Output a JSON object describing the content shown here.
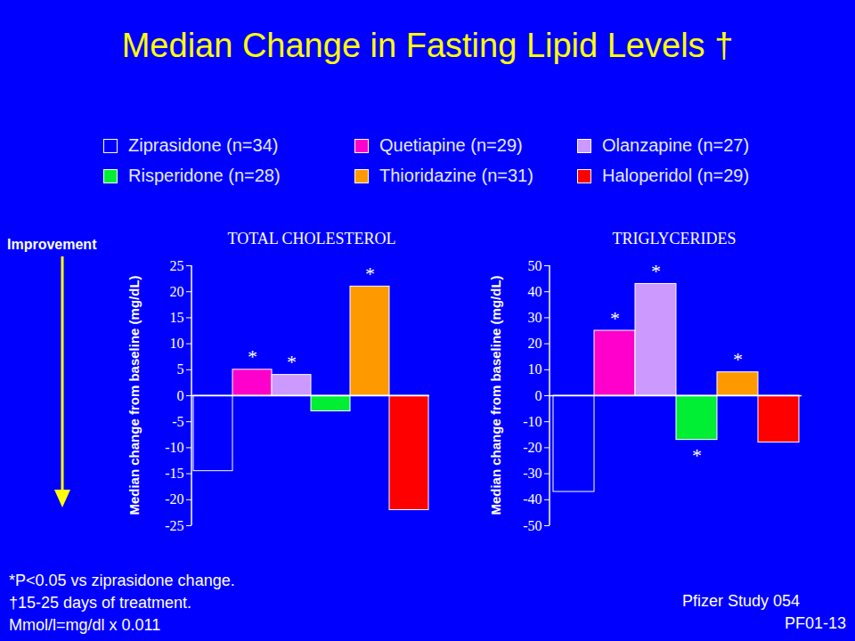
{
  "title": "Median Change in Fasting Lipid Levels †",
  "side_label": "Improvement",
  "footnotes": [
    "*P<0.05 vs ziprasidone change.",
    "†15-25 days of treatment.",
    "Mmol/l=mg/dl x 0.011"
  ],
  "source": [
    "Pfizer Study 054",
    "PF01-13"
  ],
  "chart_data": [
    {
      "type": "bar",
      "title": "TOTAL CHOLESTEROL",
      "y_label": "Median change from baseline (mg/dL)",
      "ylim": [
        -25,
        25
      ],
      "yticks": [
        -25,
        -20,
        -15,
        -10,
        -5,
        0,
        5,
        10,
        15,
        20,
        25
      ],
      "series": [
        {
          "name": "Ziprasidone (n=34)",
          "color": "#0000ff",
          "values": [
            -14.5
          ]
        },
        {
          "name": "Quetiapine (n=29)",
          "color": "#ff00cc",
          "values": [
            5
          ]
        },
        {
          "name": "Olanzapine (n=27)",
          "color": "#cc99ff",
          "values": [
            4
          ]
        },
        {
          "name": "Risperidone (n=28)",
          "color": "#00ee33",
          "values": [
            -3
          ]
        },
        {
          "name": "Thioridazine (n=31)",
          "color": "#ff9900",
          "values": [
            21
          ]
        },
        {
          "name": "Haloperidol (n=29)",
          "color": "#ff0000",
          "values": [
            -22
          ]
        }
      ],
      "annotations": [
        {
          "text": "*",
          "series": "Quetiapine (n=29)"
        },
        {
          "text": "*",
          "series": "Olanzapine (n=27)"
        },
        {
          "text": "*",
          "series": "Thioridazine (n=31)"
        }
      ]
    },
    {
      "type": "bar",
      "title": "TRIGLYCERIDES",
      "y_label": "Median change from baseline (mg/dL)",
      "ylim": [
        -50,
        50
      ],
      "yticks": [
        -50,
        -40,
        -30,
        -20,
        -10,
        0,
        10,
        20,
        30,
        40,
        50
      ],
      "series": [
        {
          "name": "Ziprasidone (n=34)",
          "color": "#0000ff",
          "values": [
            -37
          ]
        },
        {
          "name": "Quetiapine (n=29)",
          "color": "#ff00cc",
          "values": [
            25
          ]
        },
        {
          "name": "Olanzapine (n=27)",
          "color": "#cc99ff",
          "values": [
            43
          ]
        },
        {
          "name": "Risperidone (n=28)",
          "color": "#00ee33",
          "values": [
            -17
          ]
        },
        {
          "name": "Thioridazine (n=31)",
          "color": "#ff9900",
          "values": [
            9
          ]
        },
        {
          "name": "Haloperidol (n=29)",
          "color": "#ff0000",
          "values": [
            -18
          ]
        }
      ],
      "annotations": [
        {
          "text": "*",
          "series": "Quetiapine (n=29)"
        },
        {
          "text": "*",
          "series": "Olanzapine (n=27)"
        },
        {
          "text": "*",
          "series": "Risperidone (n=28)"
        },
        {
          "text": "*",
          "series": "Thioridazine (n=31)"
        }
      ]
    }
  ]
}
